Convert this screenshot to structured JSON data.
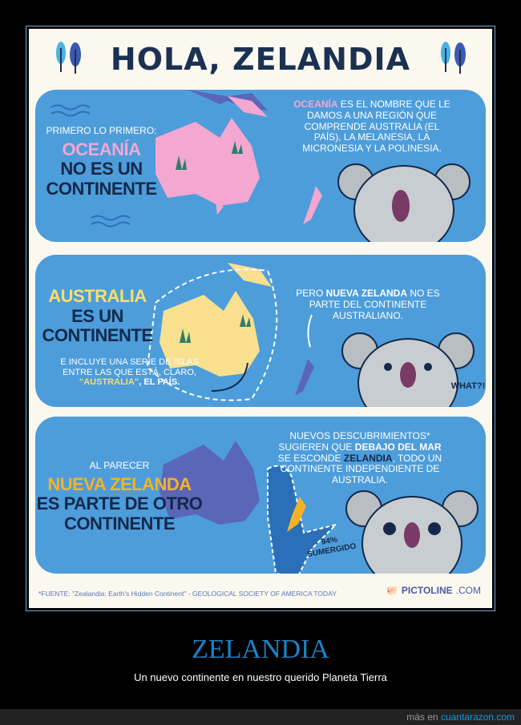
{
  "poster": {
    "title": "HOLA, ZELANDIA",
    "panel1": {
      "intro": "PRIMERO LO PRIMERO:",
      "highlight": "OCEANÍA",
      "headline": [
        "NO ES UN",
        "CONTINENTE"
      ],
      "note_highlight": "OCEANÍA",
      "note": "ES EL NOMBRE QUE LE DAMOS A UNA REGIÓN QUE COMPRENDE AUSTRALIA (EL PAÍS), LA MELANESIA, LA MICRONESIA Y LA POLINESIA."
    },
    "panel2": {
      "highlight": "AUSTRALIA",
      "headline": [
        "ES UN",
        "CONTINENTE"
      ],
      "islands_note": "E INCLUYE UNA SERIE DE ISLAS ENTRE LAS QUE ESTÁ, CLARO,",
      "islands_highlight": "“AUSTRALIA”",
      "islands_end": ", EL PAÍS.",
      "nz_pre": "PERO",
      "nz_bold": "NUEVA ZELANDA",
      "nz_post": "NO ES PARTE DEL CONTINENTE AUSTRALIANO.",
      "koala_says": "WHAT?!"
    },
    "panel3": {
      "intro": "AL PARECER",
      "highlight": "NUEVA ZELANDA",
      "headline": [
        "ES PARTE DE OTRO",
        "CONTINENTE"
      ],
      "note_a": "NUEVOS DESCUBRIMIENTOS* SUGIEREN QUE",
      "note_b": "DEBAJO DEL MAR",
      "note_c": "SE ESCONDE",
      "note_d": "ZELANDIA",
      "note_e": ", TODO UN CONTINENTE INDEPENDIENTE DE AUSTRALIA.",
      "submerged_pct": "94%",
      "submerged_label": "SUMERGIDO"
    },
    "source": "*FUENTE: \"Zealandia: Earth's Hidden Continent\" - GEOLOGICAL SOCIETY OF AMERICA TODAY",
    "logo_bold": "PICTOLINE",
    "logo_suffix": ".COM"
  },
  "caption": {
    "title": "ZELANDIA",
    "subtitle": "Un nuevo continente en nuestro querido Planeta Tierra"
  },
  "footer": {
    "prefix": "más en",
    "link": "cuantarazon.com"
  },
  "colors": {
    "panel": "#4d9ddb",
    "navy": "#14294a",
    "pink": "#f3a7d1",
    "yellow": "#f8df6a",
    "orange": "#f5b225",
    "link": "#1a84c8"
  }
}
